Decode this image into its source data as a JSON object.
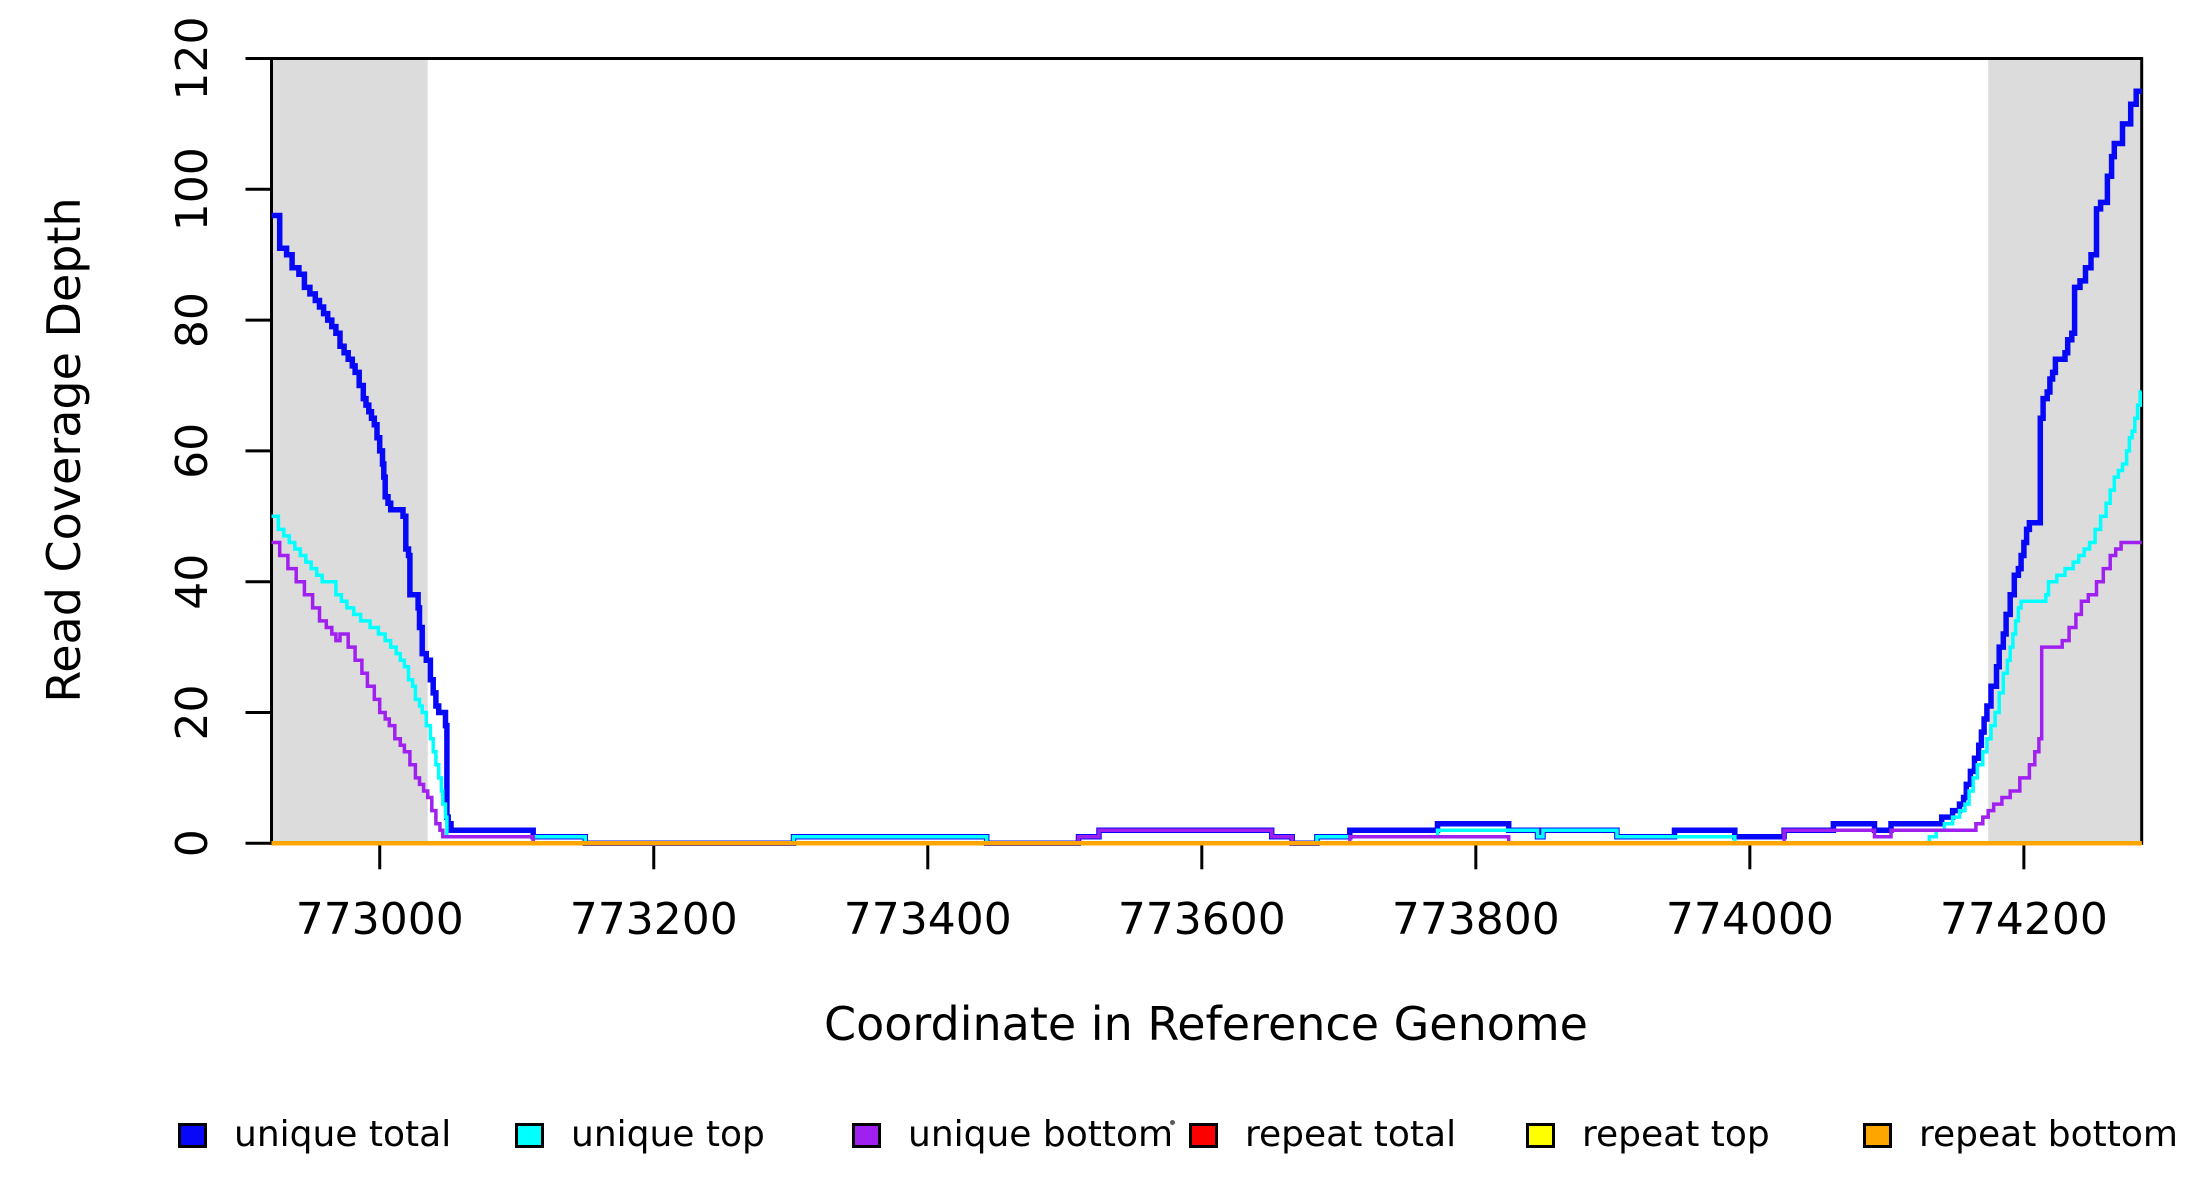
{
  "chart_data": {
    "type": "line",
    "line_style": "step",
    "title": "",
    "xlabel": "Coordinate in Reference Genome",
    "ylabel": "Read Coverage Depth",
    "xlim": [
      772921,
      774286
    ],
    "ylim": [
      0,
      120
    ],
    "x_ticks": [
      773000,
      773200,
      773400,
      773600,
      773800,
      774000,
      774200
    ],
    "y_ticks": [
      0,
      20,
      40,
      60,
      80,
      100,
      120
    ],
    "grid": false,
    "legend_position": "bottom",
    "background_color": "#ffffff",
    "shaded_region_color": "#dcdcdc",
    "shaded_regions": [
      {
        "name": "left-flank",
        "x0": 772921,
        "x1": 773035
      },
      {
        "name": "right-flank",
        "x0": 774174,
        "x1": 774286
      }
    ],
    "series": [
      {
        "name": "unique total",
        "color": "#0808F8",
        "line_width": 5.5,
        "points": [
          [
            772921,
            96
          ],
          [
            772927,
            91
          ],
          [
            772932,
            90
          ],
          [
            772936,
            88
          ],
          [
            772941,
            87
          ],
          [
            772945,
            85
          ],
          [
            772949,
            84
          ],
          [
            772953,
            83
          ],
          [
            772956,
            82
          ],
          [
            772959,
            81
          ],
          [
            772962,
            80
          ],
          [
            772965,
            79
          ],
          [
            772968,
            78
          ],
          [
            772971,
            76
          ],
          [
            772974,
            75
          ],
          [
            772977,
            74
          ],
          [
            772980,
            73
          ],
          [
            772982,
            72
          ],
          [
            772985,
            70
          ],
          [
            772988,
            68
          ],
          [
            772990,
            67
          ],
          [
            772992,
            66
          ],
          [
            772994,
            65
          ],
          [
            772996,
            64
          ],
          [
            772998,
            62
          ],
          [
            773000,
            60
          ],
          [
            773002,
            58
          ],
          [
            773003,
            56
          ],
          [
            773004,
            53
          ],
          [
            773006,
            52
          ],
          [
            773008,
            51
          ],
          [
            773017,
            50
          ],
          [
            773019,
            45
          ],
          [
            773021,
            44
          ],
          [
            773022,
            38
          ],
          [
            773028,
            36
          ],
          [
            773029,
            33
          ],
          [
            773031,
            29
          ],
          [
            773034,
            28
          ],
          [
            773037,
            25
          ],
          [
            773039,
            23
          ],
          [
            773041,
            21
          ],
          [
            773043,
            20
          ],
          [
            773048,
            18
          ],
          [
            773049,
            4
          ],
          [
            773050,
            3
          ],
          [
            773052,
            2
          ],
          [
            773112,
            1
          ],
          [
            773150,
            0
          ],
          [
            773302,
            1
          ],
          [
            773443,
            0
          ],
          [
            773510,
            1
          ],
          [
            773525,
            2
          ],
          [
            773651,
            1
          ],
          [
            773666,
            0
          ],
          [
            773684,
            1
          ],
          [
            773708,
            2
          ],
          [
            773772,
            3
          ],
          [
            773824,
            2
          ],
          [
            773845,
            1
          ],
          [
            773849,
            2
          ],
          [
            773903,
            1
          ],
          [
            773945,
            2
          ],
          [
            773989,
            1
          ],
          [
            774025,
            2
          ],
          [
            774061,
            3
          ],
          [
            774091,
            2
          ],
          [
            774103,
            3
          ],
          [
            774140,
            4
          ],
          [
            774148,
            5
          ],
          [
            774153,
            6
          ],
          [
            774156,
            7
          ],
          [
            774158,
            9
          ],
          [
            774161,
            11
          ],
          [
            774164,
            13
          ],
          [
            774167,
            15
          ],
          [
            774169,
            17
          ],
          [
            774171,
            19
          ],
          [
            774173,
            21
          ],
          [
            774176,
            24
          ],
          [
            774180,
            27
          ],
          [
            774182,
            30
          ],
          [
            774185,
            32
          ],
          [
            774187,
            35
          ],
          [
            774190,
            38
          ],
          [
            774193,
            41
          ],
          [
            774196,
            42
          ],
          [
            774198,
            44
          ],
          [
            774200,
            46
          ],
          [
            774202,
            48
          ],
          [
            774204,
            49
          ],
          [
            774212,
            65
          ],
          [
            774214,
            68
          ],
          [
            774217,
            69
          ],
          [
            774219,
            71
          ],
          [
            774221,
            72
          ],
          [
            774223,
            74
          ],
          [
            774230,
            75
          ],
          [
            774232,
            77
          ],
          [
            774235,
            78
          ],
          [
            774237,
            85
          ],
          [
            774241,
            86
          ],
          [
            774245,
            88
          ],
          [
            774249,
            90
          ],
          [
            774253,
            97
          ],
          [
            774256,
            98
          ],
          [
            774261,
            102
          ],
          [
            774264,
            105
          ],
          [
            774266,
            107
          ],
          [
            774272,
            110
          ],
          [
            774278,
            113
          ],
          [
            774282,
            115
          ]
        ]
      },
      {
        "name": "unique top",
        "color": "#00FFFF",
        "line_width": 3.5,
        "points": [
          [
            772921,
            50
          ],
          [
            772926,
            48
          ],
          [
            772930,
            47
          ],
          [
            772934,
            46
          ],
          [
            772938,
            45
          ],
          [
            772942,
            44
          ],
          [
            772946,
            43
          ],
          [
            772950,
            42
          ],
          [
            772954,
            41
          ],
          [
            772958,
            40
          ],
          [
            772968,
            38
          ],
          [
            772972,
            37
          ],
          [
            772976,
            36
          ],
          [
            772981,
            35
          ],
          [
            772986,
            34
          ],
          [
            772993,
            33
          ],
          [
            772999,
            32
          ],
          [
            773004,
            31
          ],
          [
            773008,
            30
          ],
          [
            773012,
            29
          ],
          [
            773015,
            28
          ],
          [
            773018,
            27
          ],
          [
            773021,
            25
          ],
          [
            773024,
            24
          ],
          [
            773026,
            22
          ],
          [
            773029,
            21
          ],
          [
            773031,
            20
          ],
          [
            773034,
            18
          ],
          [
            773037,
            16
          ],
          [
            773039,
            14
          ],
          [
            773041,
            12
          ],
          [
            773043,
            10
          ],
          [
            773045,
            8
          ],
          [
            773046,
            6
          ],
          [
            773048,
            4
          ],
          [
            773049,
            1
          ],
          [
            773150,
            0
          ],
          [
            773302,
            1
          ],
          [
            773443,
            0
          ],
          [
            773684,
            1
          ],
          [
            773772,
            2
          ],
          [
            773845,
            1
          ],
          [
            773849,
            2
          ],
          [
            773903,
            1
          ],
          [
            773989,
            0
          ],
          [
            774131,
            1
          ],
          [
            774136,
            2
          ],
          [
            774142,
            3
          ],
          [
            774148,
            4
          ],
          [
            774153,
            5
          ],
          [
            774157,
            6
          ],
          [
            774160,
            8
          ],
          [
            774163,
            10
          ],
          [
            774166,
            12
          ],
          [
            774170,
            14
          ],
          [
            774173,
            16
          ],
          [
            774176,
            18
          ],
          [
            774179,
            20
          ],
          [
            774182,
            23
          ],
          [
            774185,
            26
          ],
          [
            774188,
            28
          ],
          [
            774190,
            30
          ],
          [
            774192,
            32
          ],
          [
            774194,
            34
          ],
          [
            774196,
            36
          ],
          [
            774198,
            37
          ],
          [
            774216,
            38
          ],
          [
            774218,
            40
          ],
          [
            774224,
            41
          ],
          [
            774230,
            42
          ],
          [
            774236,
            43
          ],
          [
            774240,
            44
          ],
          [
            774244,
            45
          ],
          [
            774248,
            46
          ],
          [
            774252,
            48
          ],
          [
            774256,
            50
          ],
          [
            774260,
            52
          ],
          [
            774263,
            54
          ],
          [
            774266,
            56
          ],
          [
            774269,
            57
          ],
          [
            774272,
            58
          ],
          [
            774275,
            60
          ],
          [
            774277,
            62
          ],
          [
            774279,
            63
          ],
          [
            774281,
            65
          ],
          [
            774283,
            67
          ],
          [
            774285,
            69
          ]
        ]
      },
      {
        "name": "unique bottom",
        "color": "#A020F0",
        "line_width": 3.5,
        "points": [
          [
            772921,
            46
          ],
          [
            772927,
            44
          ],
          [
            772933,
            42
          ],
          [
            772939,
            40
          ],
          [
            772945,
            38
          ],
          [
            772951,
            36
          ],
          [
            772956,
            34
          ],
          [
            772961,
            33
          ],
          [
            772965,
            32
          ],
          [
            772968,
            31
          ],
          [
            772971,
            32
          ],
          [
            772977,
            30
          ],
          [
            772982,
            28
          ],
          [
            772987,
            26
          ],
          [
            772991,
            24
          ],
          [
            772996,
            22
          ],
          [
            773000,
            20
          ],
          [
            773004,
            19
          ],
          [
            773007,
            18
          ],
          [
            773011,
            16
          ],
          [
            773015,
            15
          ],
          [
            773018,
            14
          ],
          [
            773022,
            12
          ],
          [
            773026,
            10
          ],
          [
            773029,
            9
          ],
          [
            773032,
            8
          ],
          [
            773035,
            7
          ],
          [
            773038,
            5
          ],
          [
            773041,
            3
          ],
          [
            773044,
            2
          ],
          [
            773046,
            1
          ],
          [
            773112,
            0
          ],
          [
            773510,
            1
          ],
          [
            773525,
            2
          ],
          [
            773651,
            1
          ],
          [
            773666,
            0
          ],
          [
            773708,
            1
          ],
          [
            773824,
            0
          ],
          [
            774025,
            2
          ],
          [
            774091,
            1
          ],
          [
            774103,
            2
          ],
          [
            774165,
            3
          ],
          [
            774170,
            4
          ],
          [
            774174,
            5
          ],
          [
            774178,
            6
          ],
          [
            774184,
            7
          ],
          [
            774190,
            8
          ],
          [
            774197,
            10
          ],
          [
            774204,
            12
          ],
          [
            774208,
            14
          ],
          [
            774211,
            16
          ],
          [
            774213,
            30
          ],
          [
            774228,
            31
          ],
          [
            774233,
            33
          ],
          [
            774238,
            35
          ],
          [
            774242,
            37
          ],
          [
            774247,
            38
          ],
          [
            774253,
            40
          ],
          [
            774258,
            42
          ],
          [
            774263,
            44
          ],
          [
            774267,
            45
          ],
          [
            774271,
            46
          ]
        ]
      },
      {
        "name": "repeat total",
        "color": "#FF0000",
        "line_width": 3.5,
        "points": [
          [
            772921,
            0
          ]
        ]
      },
      {
        "name": "repeat top",
        "color": "#FFFF00",
        "line_width": 3.5,
        "points": [
          [
            772921,
            0
          ]
        ]
      },
      {
        "name": "repeat bottom",
        "color": "#FFA500",
        "line_width": 4.5,
        "points": [
          [
            772921,
            0
          ]
        ]
      }
    ],
    "legend": [
      {
        "label": "unique total",
        "color": "#0808F8"
      },
      {
        "label": "unique top",
        "color": "#00FFFF"
      },
      {
        "label": "unique bottom",
        "color": "#A020F0"
      },
      {
        "label": "repeat total",
        "color": "#FF0000"
      },
      {
        "label": "repeat top",
        "color": "#FFFF00"
      },
      {
        "label": "repeat bottom",
        "color": "#FFA500"
      }
    ]
  }
}
